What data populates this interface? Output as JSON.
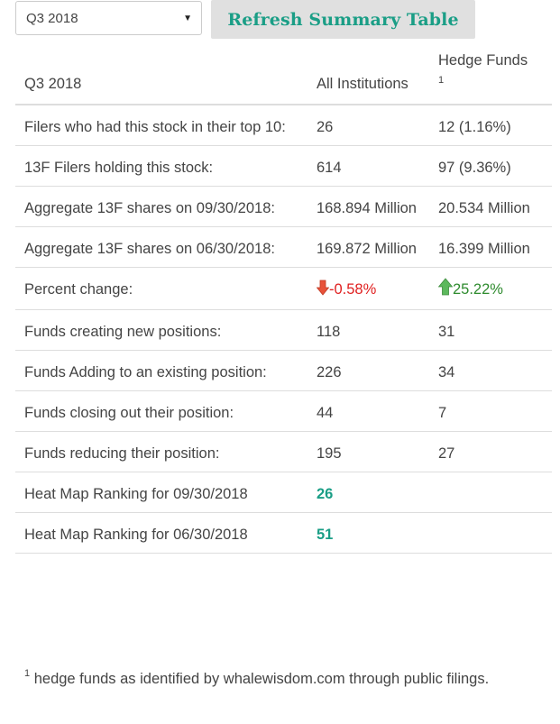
{
  "controls": {
    "quarter_select_value": "Q3 2018",
    "refresh_label": "Refresh Summary Table"
  },
  "table": {
    "header": {
      "period": "Q3 2018",
      "all_institutions": "All Institutions",
      "hedge_funds": "Hedge Funds",
      "hedge_funds_sup": "1"
    },
    "rows": [
      {
        "label": "Filers who had this stock in their top 10:",
        "all": "26",
        "hedge": "12 (1.16%)"
      },
      {
        "label": "13F Filers holding this stock:",
        "all": "614",
        "hedge": "97 (9.36%)"
      },
      {
        "label": "Aggregate 13F shares on 09/30/2018:",
        "all": "168.894 Million",
        "hedge": "20.534 Million"
      },
      {
        "label": "Aggregate 13F shares on 06/30/2018:",
        "all": "169.872 Million",
        "hedge": "16.399 Million"
      },
      {
        "label": "Percent change:",
        "all": "-0.58%",
        "hedge": "25.22%",
        "all_trend": "down",
        "hedge_trend": "up"
      },
      {
        "label": "Funds creating new positions:",
        "all": "118",
        "hedge": "31"
      },
      {
        "label": "Funds Adding to an existing position:",
        "all": "226",
        "hedge": "34"
      },
      {
        "label": "Funds closing out their position:",
        "all": "44",
        "hedge": "7"
      },
      {
        "label": "Funds reducing their position:",
        "all": "195",
        "hedge": "27"
      },
      {
        "label": "Heat Map Ranking for 09/30/2018",
        "all": "26"
      },
      {
        "label": "Heat Map Ranking for 06/30/2018",
        "all": "51"
      }
    ]
  },
  "footnote": {
    "sup": "1",
    "text": "hedge funds as identified by whalewisdom.com through public filings."
  },
  "icons": {
    "down": "arrow-down-icon",
    "up": "arrow-up-icon",
    "caret": "chevron-down-icon"
  },
  "colors": {
    "accent": "#1a9e86",
    "negative": "#e02020",
    "positive": "#2e8b2e",
    "down_arrow": "#e8523a",
    "up_arrow": "#5cb85c"
  }
}
